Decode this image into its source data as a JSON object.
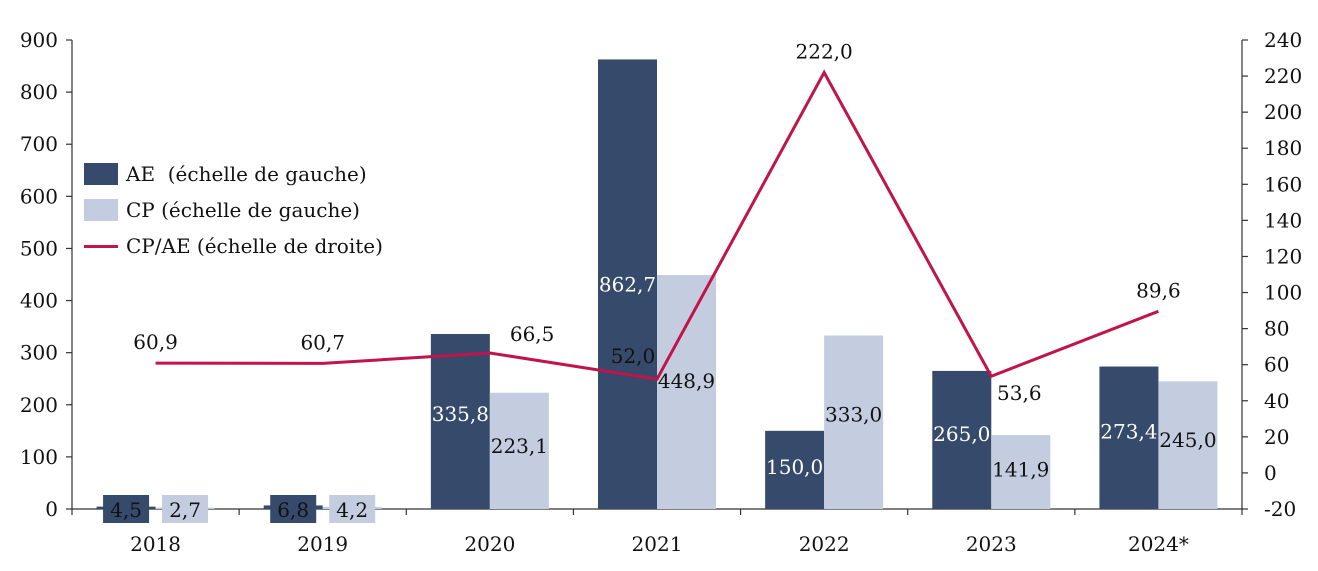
{
  "chart_data": {
    "type": "bar",
    "categories": [
      "2018",
      "2019",
      "2020",
      "2021",
      "2022",
      "2023",
      "2024*"
    ],
    "series": [
      {
        "name": "AE  (échelle de gauche)",
        "type": "bar",
        "axis": "left",
        "color": "#364A6B",
        "values": [
          4.5,
          6.8,
          335.8,
          862.7,
          150.0,
          265.0,
          273.4
        ],
        "labels": [
          "4,5",
          "6,8",
          "335,8",
          "862,7",
          "150,0",
          "265,0",
          "273,4"
        ]
      },
      {
        "name": "CP (échelle de gauche)",
        "type": "bar",
        "axis": "left",
        "color": "#C3CDDF",
        "values": [
          2.7,
          4.2,
          223.1,
          448.9,
          333.0,
          141.9,
          245.0
        ],
        "labels": [
          "2,7",
          "4,2",
          "223,1",
          "448,9",
          "333,0",
          "141,9",
          "245,0"
        ]
      },
      {
        "name": "CP/AE (échelle de droite)",
        "type": "line",
        "axis": "right",
        "color": "#C0144A",
        "values": [
          60.9,
          60.7,
          66.5,
          52.0,
          222.0,
          53.6,
          89.6
        ],
        "labels": [
          "60,9",
          "60,7",
          "66,5",
          "52,0",
          "222,0",
          "53,6",
          "89,6"
        ]
      }
    ],
    "y_left": {
      "lim": [
        0,
        900
      ],
      "ticks": [
        "0",
        "100",
        "200",
        "300",
        "400",
        "500",
        "600",
        "700",
        "800",
        "900"
      ]
    },
    "y_right": {
      "lim": [
        -20,
        240
      ],
      "ticks": [
        "-20",
        "0",
        "20",
        "40",
        "60",
        "80",
        "100",
        "120",
        "140",
        "160",
        "180",
        "200",
        "220",
        "240"
      ]
    },
    "legend_position": "left",
    "grid": false
  }
}
